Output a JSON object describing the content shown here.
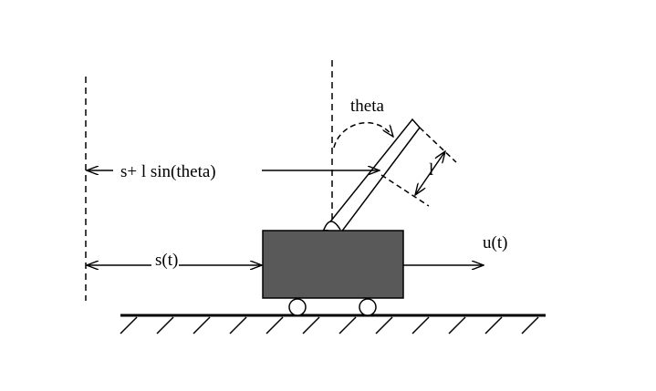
{
  "labels": {
    "theta": "theta",
    "position_plus_offset": "s+ l sin(theta)",
    "length": "l",
    "position": "s(t)",
    "input": "u(t)"
  },
  "colors": {
    "cart_fill": "#595959",
    "stroke": "#000000",
    "background": "#ffffff"
  }
}
